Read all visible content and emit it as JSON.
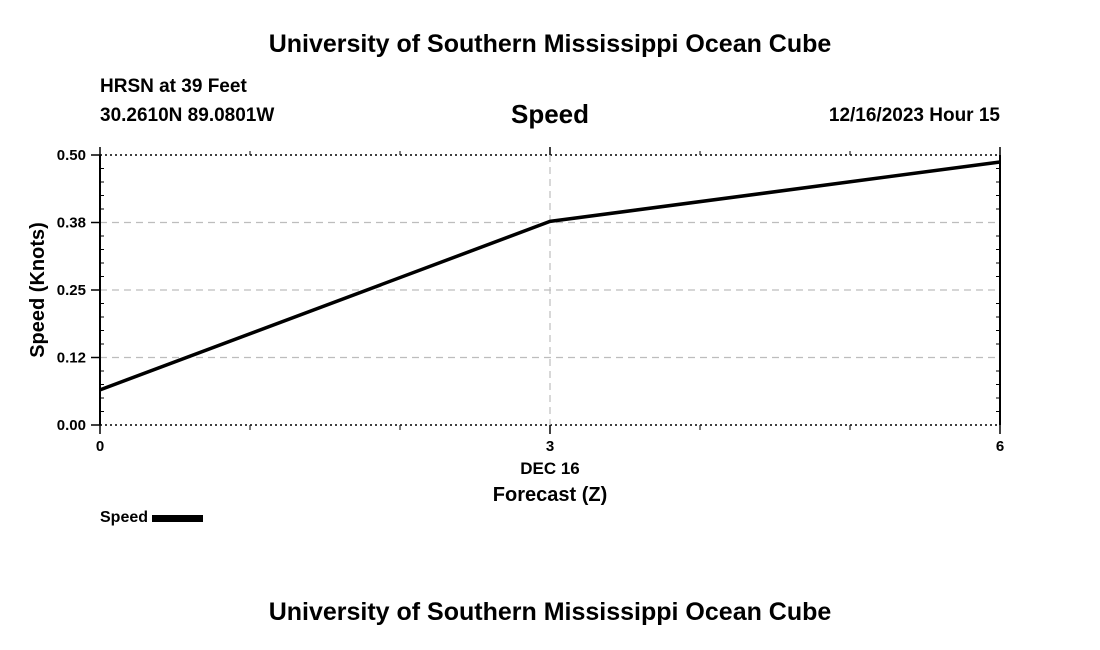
{
  "header": {
    "title": "University of Southern Mississippi Ocean Cube",
    "station": "HRSN at 39 Feet",
    "coordinates": "30.2610N  89.0801W",
    "variable": "Speed",
    "datetime": "12/16/2023 Hour 15"
  },
  "footer": {
    "title": "University of Southern Mississippi Ocean Cube"
  },
  "legend": {
    "label": "Speed"
  },
  "chart_data": {
    "type": "line",
    "title": "Speed",
    "xlabel": "Forecast (Z)",
    "xdate_label": "DEC 16",
    "ylabel": "Speed (Knots)",
    "xlim": [
      0,
      6
    ],
    "ylim": [
      0,
      0.5
    ],
    "x_ticks": [
      0,
      3,
      6
    ],
    "x_tick_labels": [
      "0",
      "3",
      "6"
    ],
    "y_ticks": [
      0,
      0.125,
      0.25,
      0.375,
      0.5
    ],
    "y_tick_labels": [
      "0.00",
      "0.12",
      "0.25",
      "0.38",
      "0.50"
    ],
    "grid": true,
    "legend_position": "bottom-left",
    "series": [
      {
        "name": "Speed",
        "color": "#000000",
        "x": [
          0,
          3,
          6
        ],
        "values": [
          0.065,
          0.377,
          0.487
        ]
      }
    ]
  }
}
